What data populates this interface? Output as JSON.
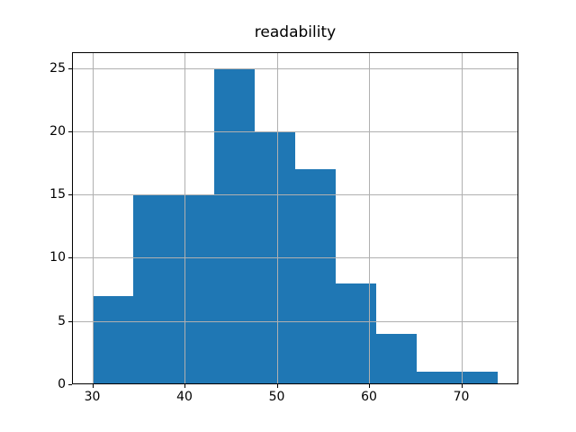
{
  "title": "readability",
  "chart_data": {
    "type": "bar",
    "subtype": "histogram",
    "title": "readability",
    "xlabel": "",
    "ylabel": "",
    "bin_edges": [
      30.0,
      34.4,
      38.8,
      43.2,
      47.6,
      52.0,
      56.4,
      60.8,
      65.2,
      69.6,
      74.0
    ],
    "counts": [
      7,
      15,
      15,
      25,
      20,
      17,
      8,
      4,
      1,
      1
    ],
    "x_ticks": [
      30,
      40,
      50,
      60,
      70
    ],
    "y_ticks": [
      0,
      5,
      10,
      15,
      20,
      25
    ],
    "xlim": [
      27.8,
      76.2
    ],
    "ylim": [
      0,
      26.25
    ],
    "grid": true,
    "legend": false,
    "bar_color": "#1f77b4",
    "grid_color": "#b0b0b0",
    "spine_color": "#000000",
    "background_color": "#ffffff"
  }
}
